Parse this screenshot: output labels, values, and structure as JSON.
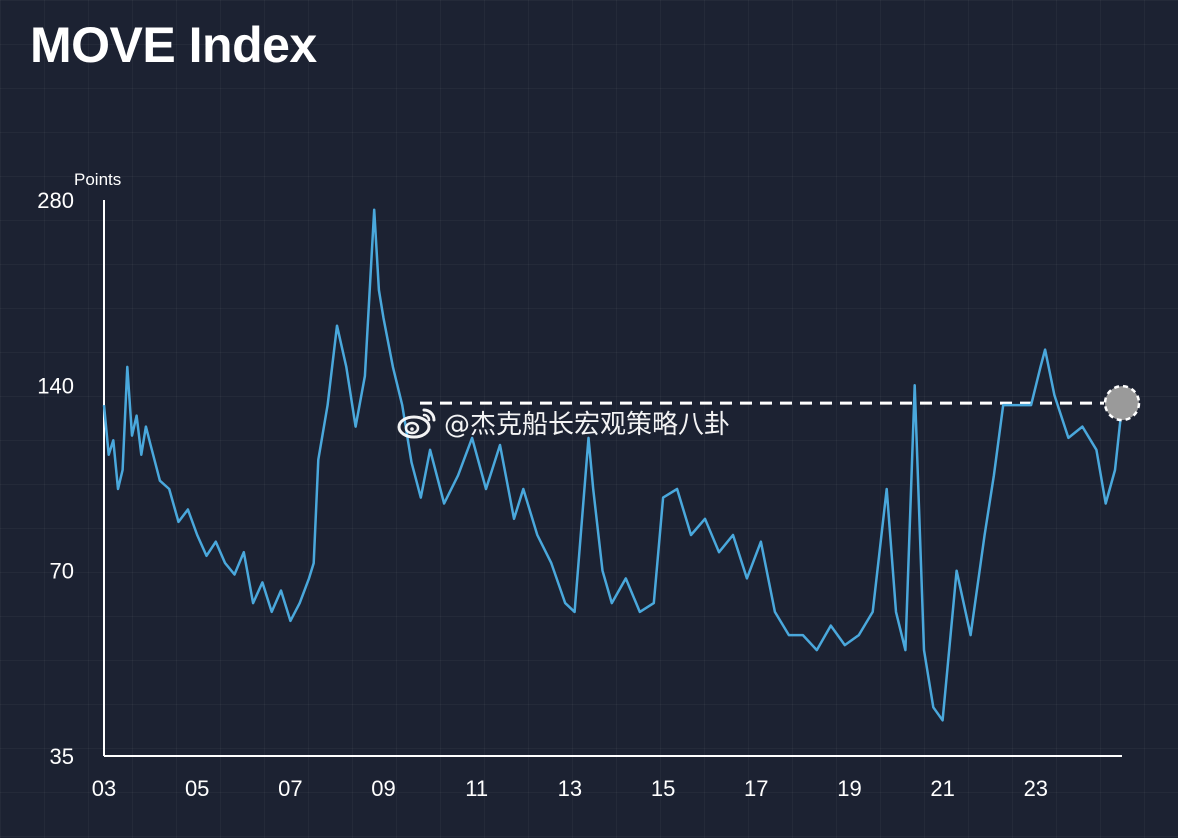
{
  "page": {
    "title": "MOVE Index"
  },
  "watermark": {
    "text": "@杰克船长宏观策略八卦",
    "logo": "weibo-logo-icon"
  },
  "colors": {
    "background": "#1c2232",
    "line": "#4aa8dc",
    "axis": "#ffffff",
    "marker_fill": "#9a9a9a",
    "marker_stroke": "#ffffff",
    "reference_line": "#ffffff"
  },
  "chart_data": {
    "type": "line",
    "title": "MOVE Index",
    "ylabel": "Points",
    "xlabel": "",
    "y_scale": "log",
    "ylim": [
      35,
      280
    ],
    "xlim": [
      2003.0,
      2024.85
    ],
    "y_ticks": [
      {
        "value": 280,
        "label": "280"
      },
      {
        "value": 140,
        "label": "140"
      },
      {
        "value": 70,
        "label": "70"
      },
      {
        "value": 35,
        "label": "35"
      }
    ],
    "x_ticks": [
      {
        "value": 2003,
        "label": "03"
      },
      {
        "value": 2005,
        "label": "05"
      },
      {
        "value": 2007,
        "label": "07"
      },
      {
        "value": 2009,
        "label": "09"
      },
      {
        "value": 2011,
        "label": "11"
      },
      {
        "value": 2013,
        "label": "13"
      },
      {
        "value": 2015,
        "label": "15"
      },
      {
        "value": 2017,
        "label": "17"
      },
      {
        "value": 2019,
        "label": "19"
      },
      {
        "value": 2021,
        "label": "21"
      },
      {
        "value": 2023,
        "label": "23"
      }
    ],
    "grid": false,
    "legend": "none",
    "series": [
      {
        "x": [
          2003.0,
          2003.1,
          2003.2,
          2003.3,
          2003.4,
          2003.5,
          2003.6,
          2003.7,
          2003.8,
          2003.9,
          2004.0,
          2004.2,
          2004.4,
          2004.6,
          2004.8,
          2005.0,
          2005.2,
          2005.4,
          2005.6,
          2005.8,
          2006.0,
          2006.2,
          2006.4,
          2006.6,
          2006.8,
          2007.0,
          2007.2,
          2007.4,
          2007.5,
          2007.6,
          2007.8,
          2008.0,
          2008.2,
          2008.4,
          2008.6,
          2008.8,
          2008.9,
          2009.0,
          2009.2,
          2009.4,
          2009.6,
          2009.8,
          2010.0,
          2010.3,
          2010.6,
          2010.9,
          2011.2,
          2011.5,
          2011.8,
          2012.0,
          2012.3,
          2012.6,
          2012.9,
          2013.1,
          2013.4,
          2013.5,
          2013.7,
          2013.9,
          2014.2,
          2014.5,
          2014.8,
          2015.0,
          2015.3,
          2015.6,
          2015.9,
          2016.2,
          2016.5,
          2016.8,
          2017.1,
          2017.4,
          2017.7,
          2018.0,
          2018.3,
          2018.6,
          2018.9,
          2019.2,
          2019.5,
          2019.8,
          2020.0,
          2020.2,
          2020.4,
          2020.6,
          2020.8,
          2021.0,
          2021.3,
          2021.6,
          2021.9,
          2022.1,
          2022.3,
          2022.6,
          2022.9,
          2023.1,
          2023.2,
          2023.4,
          2023.7,
          2024.0,
          2024.3,
          2024.5,
          2024.7,
          2024.85
        ],
        "y": [
          130,
          108,
          114,
          95,
          102,
          150,
          116,
          125,
          108,
          120,
          112,
          98,
          95,
          84,
          88,
          80,
          74,
          78,
          72,
          69,
          75,
          62,
          67,
          60,
          65,
          58,
          62,
          68,
          72,
          106,
          130,
          175,
          150,
          120,
          145,
          270,
          200,
          180,
          150,
          130,
          105,
          92,
          110,
          90,
          100,
          115,
          95,
          112,
          85,
          95,
          80,
          72,
          62,
          60,
          115,
          95,
          70,
          62,
          68,
          60,
          62,
          92,
          95,
          80,
          85,
          75,
          80,
          68,
          78,
          60,
          55,
          55,
          52,
          57,
          53,
          55,
          60,
          95,
          60,
          52,
          140,
          52,
          42,
          40,
          70,
          55,
          80,
          100,
          130,
          130,
          130,
          150,
          160,
          135,
          115,
          120,
          110,
          90,
          102,
          130
        ]
      }
    ],
    "reference": {
      "value": 131,
      "style": "dashed"
    },
    "marker": {
      "x": 2024.85,
      "y": 131
    }
  }
}
